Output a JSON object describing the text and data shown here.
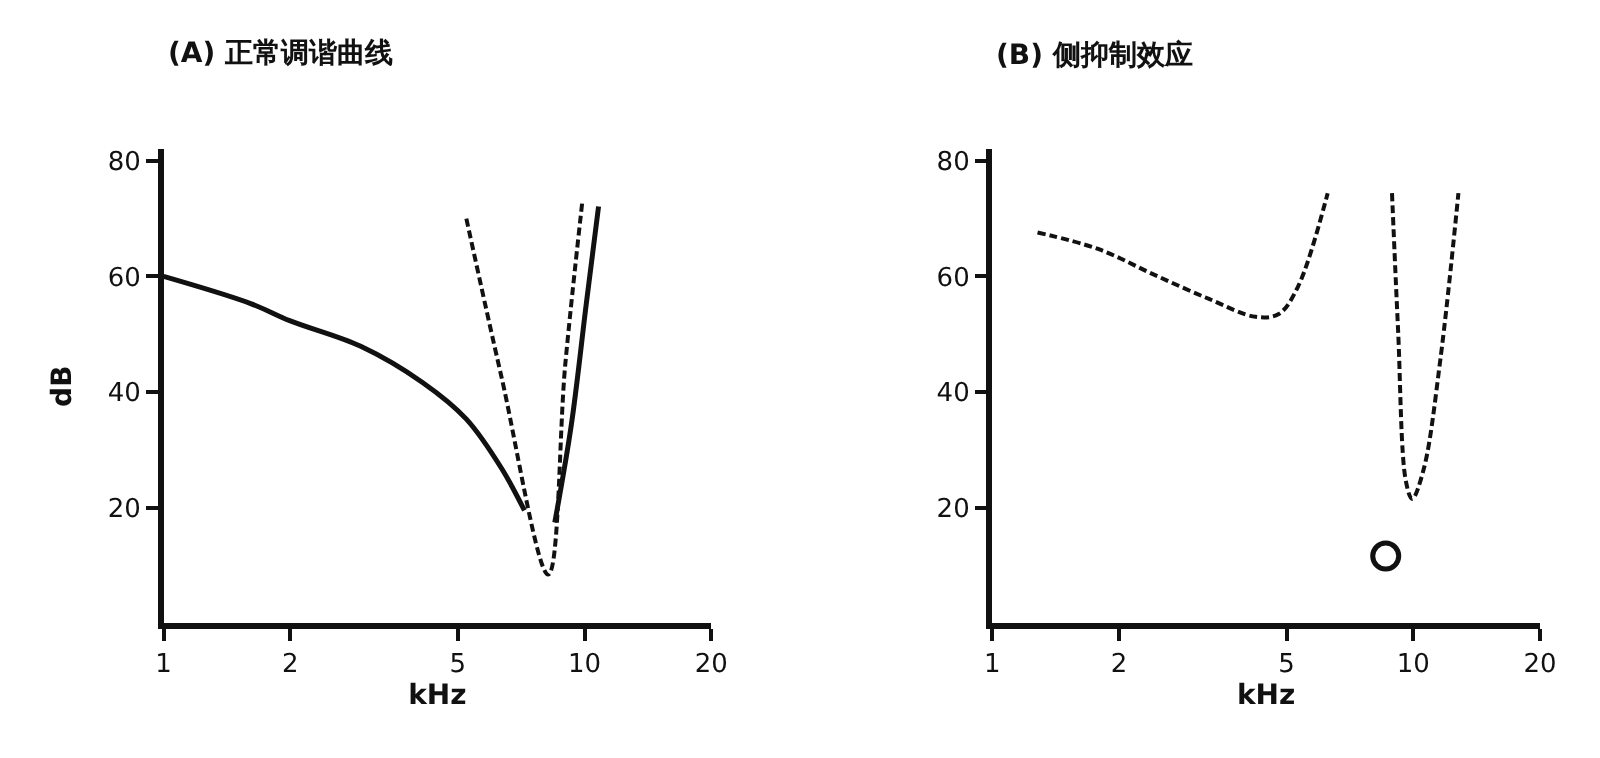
{
  "chart_data": [
    {
      "type": "line",
      "title": "(A) 正常调谐曲线",
      "xlabel": "kHz",
      "ylabel": "dB",
      "log": "x",
      "xlim": [
        1,
        20
      ],
      "xticks": [
        1,
        2,
        5,
        10,
        20
      ],
      "ylim": [
        0,
        82
      ],
      "yticks": [
        20,
        40,
        60,
        80
      ],
      "series": [
        {
          "color": "#111111",
          "line_style": "solid",
          "marker": "none",
          "x": [
            1,
            1.61,
            2,
            2.94,
            4.13,
            5.24,
            6.35,
            7.2
          ],
          "values": [
            60,
            55.3,
            52.3,
            47.9,
            41.6,
            35.3,
            26.8,
            19.5
          ]
        },
        {
          "color": "#111111",
          "line_style": "solid",
          "marker": "none",
          "x": [
            8.5,
            9.3,
            10.1,
            10.8
          ],
          "values": [
            17.4,
            34.2,
            55.3,
            72.1
          ]
        },
        {
          "color": "#111111",
          "line_style": "dashed",
          "marker": "none",
          "x": [
            5.24,
            6.35,
            8.2,
            9.0,
            9.88
          ],
          "values": [
            70,
            42.6,
            8.4,
            44.7,
            72.9
          ]
        }
      ]
    },
    {
      "type": "line",
      "title": "(B) 侧抑制效应",
      "xlabel": "kHz",
      "log": "x",
      "xlim": [
        1,
        20
      ],
      "xticks": [
        1,
        2,
        5,
        10,
        20
      ],
      "ylim": [
        0,
        82
      ],
      "yticks": [
        20,
        40,
        60,
        80
      ],
      "series": [
        {
          "color": "#111111",
          "line_style": "dashed",
          "marker": "none",
          "x": [
            1.28,
            1.79,
            2.42,
            3.27,
            4.22,
            4.79,
            5.32,
            6.26
          ],
          "values": [
            67.6,
            64.7,
            60.3,
            56.1,
            53.0,
            53.5,
            58.2,
            74.4
          ]
        },
        {
          "color": "#111111",
          "line_style": "dashed",
          "marker": "none",
          "x": [
            8.9,
            9.2,
            9.6,
            9.94,
            10.6,
            11.6,
            12.8
          ],
          "values": [
            74.4,
            50.8,
            24.6,
            21.5,
            26.8,
            45.7,
            74.4
          ]
        },
        {
          "type": "scatter",
          "color": "#111111",
          "marker": "circle",
          "x": [
            8.6
          ],
          "values": [
            11.6
          ]
        }
      ]
    }
  ]
}
